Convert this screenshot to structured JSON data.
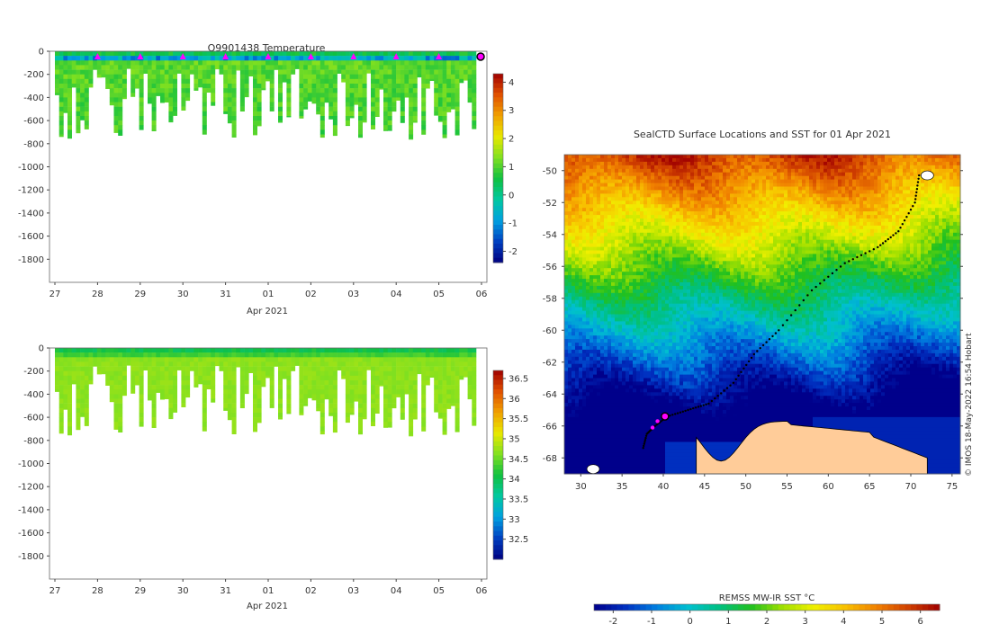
{
  "charts": {
    "temperature": {
      "title": "Q9901438  Temperature",
      "xlabel": "Apr 2021",
      "colorbar": {
        "ticks": [
          4,
          3,
          2,
          1,
          0,
          -1,
          -2
        ],
        "range": [
          -2.4,
          4.3
        ],
        "colors": [
          "#000080",
          "#0040c0",
          "#00a0e0",
          "#00c8a0",
          "#10c040",
          "#80e020",
          "#e8e800",
          "#f0a000",
          "#e05000",
          "#a00000"
        ]
      }
    },
    "salinity": {
      "xlabel": "Apr 2021",
      "colorbar": {
        "ticks": [
          36.5,
          36,
          35.5,
          35,
          34.5,
          34,
          33.5,
          33,
          32.5
        ],
        "range": [
          32.0,
          36.7
        ],
        "colors": [
          "#000080",
          "#0040c0",
          "#00a0e0",
          "#00c8a0",
          "#10c040",
          "#80e020",
          "#e8e800",
          "#f0a000",
          "#e05000",
          "#a00000"
        ]
      }
    },
    "map": {
      "title": "SealCTD Surface Locations and SST for 01 Apr 2021",
      "sst_label": "REMSS MW-IR SST °C",
      "credit": "© IMOS 18-May-2022 16:54 Hobart",
      "sst_ticks": [
        -2,
        -1,
        0,
        1,
        2,
        3,
        4,
        5,
        6
      ]
    }
  },
  "chart_data": [
    {
      "type": "heatmap",
      "name": "temperature_section",
      "title": "Q9901438  Temperature",
      "xlabel": "Apr 2021",
      "ylabel": "",
      "x_ticks": [
        "27",
        "28",
        "29",
        "30",
        "31",
        "01",
        "02",
        "03",
        "04",
        "05",
        "06"
      ],
      "y_ticks": [
        0,
        -200,
        -400,
        -600,
        -800,
        -1000,
        -1200,
        -1400,
        -1600,
        -1800
      ],
      "ylim": [
        -2000,
        0
      ],
      "colorbar_ticks": [
        4,
        3,
        2,
        1,
        0,
        -1,
        -2
      ],
      "colorbar_range": [
        -2.4,
        4.3
      ],
      "profile_markers_x": [
        1,
        2,
        3,
        4,
        5,
        6,
        7,
        8,
        9,
        9.98
      ],
      "max_depth_range": [
        -300,
        -800
      ]
    },
    {
      "type": "heatmap",
      "name": "salinity_section",
      "xlabel": "Apr 2021",
      "ylabel": "",
      "x_ticks": [
        "27",
        "28",
        "29",
        "30",
        "31",
        "01",
        "02",
        "03",
        "04",
        "05",
        "06"
      ],
      "y_ticks": [
        0,
        -200,
        -400,
        -600,
        -800,
        -1000,
        -1200,
        -1400,
        -1600,
        -1800
      ],
      "ylim": [
        -2000,
        0
      ],
      "colorbar_ticks": [
        36.5,
        36,
        35.5,
        35,
        34.5,
        34,
        33.5,
        33,
        32.5
      ],
      "colorbar_range": [
        32.0,
        36.7
      ]
    },
    {
      "type": "heatmap",
      "name": "sst_map",
      "title": "SealCTD Surface Locations and SST for 01 Apr 2021",
      "x_ticks": [
        30,
        35,
        40,
        45,
        50,
        55,
        60,
        65,
        70,
        75
      ],
      "y_ticks": [
        -50,
        -52,
        -54,
        -56,
        -58,
        -60,
        -62,
        -64,
        -66,
        -68
      ],
      "xlim": [
        28,
        76
      ],
      "ylim": [
        -69,
        -49
      ],
      "colorbar_label": "REMSS MW-IR SST °C",
      "colorbar_ticks": [
        -2,
        -1,
        0,
        1,
        2,
        3,
        4,
        5,
        6
      ],
      "colorbar_range": [
        -2.5,
        6.5
      ],
      "track": [
        [
          71,
          -50.3
        ],
        [
          70.5,
          -52
        ],
        [
          68.5,
          -53.8
        ],
        [
          66,
          -54.8
        ],
        [
          62,
          -55.8
        ],
        [
          58,
          -57.5
        ],
        [
          54,
          -60
        ],
        [
          51,
          -61.5
        ],
        [
          48.5,
          -63.3
        ],
        [
          45.5,
          -64.6
        ],
        [
          43,
          -65
        ],
        [
          40.5,
          -65.4
        ],
        [
          39,
          -66
        ],
        [
          38,
          -66.5
        ],
        [
          37.5,
          -67.5
        ]
      ],
      "highlight_points": [
        [
          40.1,
          -65.3
        ],
        [
          39.3,
          -65.7
        ],
        [
          38.7,
          -66.1
        ]
      ],
      "current_position": [
        40.2,
        -65.4
      ]
    }
  ]
}
